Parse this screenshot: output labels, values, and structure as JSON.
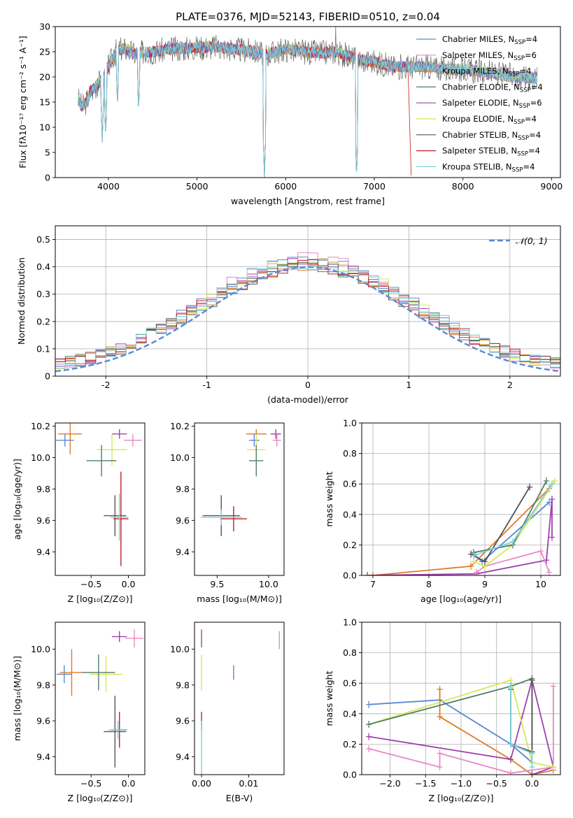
{
  "colors": {
    "Chabrier MILES": "#5b87d6",
    "Salpeter MILES": "#e78ac3",
    "Kroupa MILES": "#e07b24",
    "Chabrier ELODIE": "#4f7f6a",
    "Salpeter ELODIE": "#a040b0",
    "Kroupa ELODIE": "#d6e85a",
    "Chabrier STELIB": "#555555",
    "Salpeter STELIB": "#c41e1e",
    "Kroupa STELIB": "#79d2dc"
  },
  "chart_data": [
    {
      "id": "spectrum",
      "type": "line",
      "title": "PLATE=0376, MJD=52143, FIBERID=0510, z=0.04",
      "xlabel": "wavelength [Angstrom, rest frame]",
      "ylabel": "Flux [fλ10⁻¹⁷ erg cm⁻² s⁻¹ A⁻¹]",
      "xlim": [
        3400,
        9100
      ],
      "ylim": [
        0,
        30
      ],
      "xticks": [
        4000,
        5000,
        6000,
        7000,
        8000,
        9000
      ],
      "yticks": [
        0,
        5,
        10,
        15,
        20,
        25,
        30
      ],
      "legend_position": "top-right",
      "legend": [
        {
          "label": "Chabrier MILES, N",
          "sub": "SSP",
          "suffix": "=4",
          "series": "Chabrier MILES"
        },
        {
          "label": "Salpeter MILES, N",
          "sub": "SSP",
          "suffix": "=6",
          "series": "Salpeter MILES"
        },
        {
          "label": "Kroupa MILES, N",
          "sub": "SSP",
          "suffix": "=4",
          "series": "Kroupa MILES"
        },
        {
          "label": "Chabrier ELODIE, N",
          "sub": "SSP",
          "suffix": "=4",
          "series": "Chabrier ELODIE"
        },
        {
          "label": "Salpeter ELODIE, N",
          "sub": "SSP",
          "suffix": "=6",
          "series": "Salpeter ELODIE"
        },
        {
          "label": "Kroupa ELODIE, N",
          "sub": "SSP",
          "suffix": "=4",
          "series": "Kroupa ELODIE"
        },
        {
          "label": "Chabrier STELIB, N",
          "sub": "SSP",
          "suffix": "=4",
          "series": "Chabrier STELIB"
        },
        {
          "label": "Salpeter STELIB, N",
          "sub": "SSP",
          "suffix": "=4",
          "series": "Salpeter STELIB"
        },
        {
          "label": "Kroupa STELIB, N",
          "sub": "SSP",
          "suffix": "=4",
          "series": "Kroupa STELIB"
        }
      ],
      "envelope": {
        "x": [
          3650,
          3700,
          3750,
          3800,
          3850,
          3900,
          3950,
          4000,
          4050,
          4100,
          4200,
          4300,
          4400,
          4500,
          4700,
          5000,
          5200,
          5400,
          5600,
          5800,
          6000,
          6200,
          6400,
          6560,
          6800,
          7000,
          7200,
          7400,
          7600,
          7800,
          8000,
          8200,
          8400,
          8600,
          8800
        ],
        "y": [
          16,
          14,
          15,
          17,
          18,
          19,
          20,
          22,
          24,
          25.5,
          25.5,
          24.5,
          25,
          25,
          25.5,
          25.8,
          26,
          25.5,
          25.2,
          24.5,
          25.5,
          25,
          24.8,
          25,
          23.5,
          23,
          22,
          22,
          22,
          21.5,
          21.5,
          21,
          20.5,
          20,
          19.8
        ]
      },
      "dips": [
        {
          "x": 3930,
          "y": 7
        },
        {
          "x": 3968,
          "y": 8
        },
        {
          "x": 4102,
          "y": 14
        },
        {
          "x": 4340,
          "y": 13
        },
        {
          "x": 5760,
          "y": 0
        },
        {
          "x": 6800,
          "y": 0
        }
      ],
      "spikes": [
        {
          "x": 6565,
          "y": 30
        }
      ]
    },
    {
      "id": "residuals",
      "type": "histogram",
      "xlabel": "(data-model)/error",
      "ylabel": "Normed distribution",
      "xlim": [
        -2.5,
        2.5
      ],
      "ylim": [
        0,
        0.55
      ],
      "xticks": [
        -2,
        -1,
        0,
        1,
        2
      ],
      "yticks": [
        0.0,
        0.1,
        0.2,
        0.3,
        0.4,
        0.5
      ],
      "grid": true,
      "legend_position": "top-right",
      "reference_curve": {
        "label": "𝒩(0, 1)",
        "mean": 0,
        "sigma": 1,
        "color": "#5b87d6"
      },
      "bin_width": 0.1,
      "series": [
        {
          "name": "Chabrier MILES",
          "peak": 0.44,
          "seed": 1
        },
        {
          "name": "Salpeter MILES",
          "peak": 0.45,
          "seed": 2
        },
        {
          "name": "Kroupa MILES",
          "peak": 0.42,
          "seed": 3
        },
        {
          "name": "Chabrier ELODIE",
          "peak": 0.42,
          "seed": 4
        },
        {
          "name": "Salpeter ELODIE",
          "peak": 0.43,
          "seed": 5
        },
        {
          "name": "Kroupa ELODIE",
          "peak": 0.44,
          "seed": 6
        },
        {
          "name": "Chabrier STELIB",
          "peak": 0.42,
          "seed": 7
        },
        {
          "name": "Salpeter STELIB",
          "peak": 0.42,
          "seed": 8
        },
        {
          "name": "Kroupa STELIB",
          "peak": 0.43,
          "seed": 9
        }
      ]
    },
    {
      "id": "age-vs-Z",
      "type": "errorbar",
      "xlabel": "Z [log₁₀(Z/Z⊙)]",
      "ylabel": "age  [log₁₀(age/yr)]",
      "xlim": [
        -0.98,
        0.22
      ],
      "ylim": [
        9.25,
        10.22
      ],
      "xticks": [
        -0.5,
        0.0
      ],
      "xticklabels": [
        "−0.5",
        "0.0"
      ],
      "yticks": [
        9.4,
        9.6,
        9.8,
        10.0,
        10.2
      ],
      "yticklabels": [
        "9.4",
        "9.6",
        "9.8",
        "10.0",
        "10.2"
      ],
      "points": [
        {
          "series": "Chabrier MILES",
          "x": -0.85,
          "y": 10.11,
          "xerr": 0.12,
          "yerr": 0.04
        },
        {
          "series": "Kroupa MILES",
          "x": -0.78,
          "y": 10.15,
          "xerr": 0.16,
          "yerr": 0.13
        },
        {
          "series": "Salpeter ELODIE",
          "x": -0.12,
          "y": 10.15,
          "xerr": 0.1,
          "yerr": 0.03
        },
        {
          "series": "Salpeter MILES",
          "x": 0.06,
          "y": 10.11,
          "xerr": 0.12,
          "yerr": 0.04
        },
        {
          "series": "Kroupa ELODIE",
          "x": -0.22,
          "y": 10.05,
          "xerr": 0.2,
          "yerr": 0.1
        },
        {
          "series": "Chabrier ELODIE",
          "x": -0.36,
          "y": 9.98,
          "xerr": 0.2,
          "yerr": 0.1
        },
        {
          "series": "Chabrier STELIB",
          "x": -0.18,
          "y": 9.63,
          "xerr": 0.15,
          "yerr": 0.13
        },
        {
          "series": "Salpeter STELIB",
          "x": -0.1,
          "y": 9.61,
          "xerr": 0.1,
          "yerr": 0.3
        },
        {
          "series": "Kroupa STELIB",
          "x": -0.12,
          "y": 9.62,
          "xerr": 0.12,
          "yerr": 0.15
        }
      ]
    },
    {
      "id": "age-vs-mass",
      "type": "errorbar",
      "xlabel": "mass [log₁₀(M/M⊙)]",
      "ylabel": "",
      "xlim": [
        9.28,
        10.15
      ],
      "ylim": [
        9.25,
        10.22
      ],
      "xticks": [
        9.5,
        10.0
      ],
      "xticklabels": [
        "9.5",
        "10.0"
      ],
      "yticks": [
        9.4,
        9.6,
        9.8,
        10.0,
        10.2
      ],
      "yticklabels": [
        "9.4",
        "9.6",
        "9.8",
        "10.0",
        "10.2"
      ],
      "points": [
        {
          "series": "Kroupa MILES",
          "x": 9.88,
          "y": 10.15,
          "xerr": 0.1,
          "yerr": 0.03
        },
        {
          "series": "Salpeter ELODIE",
          "x": 10.07,
          "y": 10.15,
          "xerr": 0.05,
          "yerr": 0.03
        },
        {
          "series": "Salpeter MILES",
          "x": 10.08,
          "y": 10.11,
          "xerr": 0.04,
          "yerr": 0.04
        },
        {
          "series": "Chabrier MILES",
          "x": 9.86,
          "y": 10.11,
          "xerr": 0.05,
          "yerr": 0.04
        },
        {
          "series": "Kroupa ELODIE",
          "x": 9.88,
          "y": 10.05,
          "xerr": 0.09,
          "yerr": 0.1
        },
        {
          "series": "Chabrier ELODIE",
          "x": 9.88,
          "y": 9.98,
          "xerr": 0.07,
          "yerr": 0.1
        },
        {
          "series": "Chabrier STELIB",
          "x": 9.54,
          "y": 9.63,
          "xerr": 0.18,
          "yerr": 0.13
        },
        {
          "series": "Salpeter STELIB",
          "x": 9.66,
          "y": 9.61,
          "xerr": 0.13,
          "yerr": 0.08
        },
        {
          "series": "Kroupa STELIB",
          "x": 9.54,
          "y": 9.62,
          "xerr": 0.2,
          "yerr": 0.05
        }
      ]
    },
    {
      "id": "weight-vs-age",
      "type": "line",
      "xlabel": "age  [log₁₀(age/yr)]",
      "ylabel": "mass weight",
      "xlim": [
        6.8,
        10.35
      ],
      "ylim": [
        0,
        1.0
      ],
      "xticks": [
        7,
        8,
        9,
        10
      ],
      "xticklabels": [
        "7",
        "8",
        "9",
        "10"
      ],
      "yticks": [
        0.0,
        0.2,
        0.4,
        0.6,
        0.8,
        1.0
      ],
      "yticklabels": [
        "0.0",
        "0.2",
        "0.4",
        "0.6",
        "0.8",
        "1.0"
      ],
      "grid": true,
      "series": [
        {
          "name": "Chabrier MILES",
          "x": [
            8.8,
            8.95,
            10.15
          ],
          "y": [
            0.14,
            0.09,
            0.48
          ]
        },
        {
          "name": "Kroupa MILES",
          "x": [
            7.0,
            8.75,
            10.15
          ],
          "y": [
            0.0,
            0.06,
            0.57
          ]
        },
        {
          "name": "Salpeter ELODIE",
          "x": [
            6.9,
            8.85,
            10.1,
            10.2,
            10.2
          ],
          "y": [
            0.0,
            0.01,
            0.1,
            0.5,
            0.25
          ]
        },
        {
          "name": "Salpeter MILES",
          "x": [
            8.85,
            9.0,
            10.0,
            10.15
          ],
          "y": [
            0.02,
            0.06,
            0.16,
            0.02
          ]
        },
        {
          "name": "Kroupa ELODIE",
          "x": [
            8.8,
            9.0,
            9.5,
            10.25
          ],
          "y": [
            0.09,
            0.06,
            0.2,
            0.62
          ]
        },
        {
          "name": "Chabrier ELODIE",
          "x": [
            8.8,
            9.5,
            10.1
          ],
          "y": [
            0.15,
            0.2,
            0.62
          ]
        },
        {
          "name": "Chabrier STELIB",
          "x": [
            8.75,
            9.0,
            9.8
          ],
          "y": [
            0.14,
            0.09,
            0.58
          ]
        },
        {
          "name": "Kroupa STELIB",
          "x": [
            8.8,
            9.5,
            10.2
          ],
          "y": [
            0.13,
            0.22,
            0.6
          ]
        }
      ]
    },
    {
      "id": "mass-vs-Z",
      "type": "errorbar",
      "xlabel": "Z [log₁₀(Z/Z⊙)]",
      "ylabel": "mass [log₁₀(M/M⊙)]",
      "xlim": [
        -0.98,
        0.22
      ],
      "ylim": [
        9.3,
        10.15
      ],
      "xticks": [
        -0.5,
        0.0
      ],
      "xticklabels": [
        "−0.5",
        "0.0"
      ],
      "yticks": [
        9.4,
        9.6,
        9.8,
        10.0
      ],
      "yticklabels": [
        "9.4",
        "9.6",
        "9.8",
        "10.0"
      ],
      "points": [
        {
          "series": "Chabrier MILES",
          "x": -0.86,
          "y": 9.86,
          "xerr": 0.1,
          "yerr": 0.05
        },
        {
          "series": "Kroupa MILES",
          "x": -0.76,
          "y": 9.87,
          "xerr": 0.16,
          "yerr": 0.13
        },
        {
          "series": "Kroupa ELODIE",
          "x": -0.3,
          "y": 9.86,
          "xerr": 0.22,
          "yerr": 0.1
        },
        {
          "series": "Chabrier ELODIE",
          "x": -0.4,
          "y": 9.87,
          "xerr": 0.22,
          "yerr": 0.1
        },
        {
          "series": "Salpeter ELODIE",
          "x": -0.12,
          "y": 10.07,
          "xerr": 0.1,
          "yerr": 0.03
        },
        {
          "series": "Salpeter MILES",
          "x": 0.08,
          "y": 10.06,
          "xerr": 0.12,
          "yerr": 0.05
        },
        {
          "series": "Salpeter STELIB",
          "x": -0.12,
          "y": 9.55,
          "xerr": 0.1,
          "yerr": 0.1
        },
        {
          "series": "Chabrier STELIB",
          "x": -0.18,
          "y": 9.54,
          "xerr": 0.15,
          "yerr": 0.2
        },
        {
          "series": "Kroupa STELIB",
          "x": -0.14,
          "y": 9.55,
          "xerr": 0.12,
          "yerr": 0.05
        }
      ]
    },
    {
      "id": "mass-vs-ebv",
      "type": "errorbar",
      "xlabel": "E(B-V)",
      "ylabel": "",
      "xlim": [
        -0.0015,
        0.0175
      ],
      "ylim": [
        9.3,
        10.15
      ],
      "xticks": [
        0.0,
        0.01
      ],
      "xticklabels": [
        "0.00",
        "0.01"
      ],
      "yticks": [
        9.4,
        9.6,
        9.8,
        10.0
      ],
      "yticklabels": [
        "9.4",
        "9.6",
        "9.8",
        "10.0"
      ],
      "points": [
        {
          "series": "Chabrier MILES",
          "x": 0.0068,
          "y": 9.87,
          "xerr": 0,
          "yerr": 0.04
        },
        {
          "series": "Salpeter MILES",
          "x": 0.0165,
          "y": 10.05,
          "xerr": 0,
          "yerr": 0.05
        },
        {
          "series": "Salpeter ELODIE",
          "x": 0.0,
          "y": 10.06,
          "xerr": 0,
          "yerr": 0.05
        },
        {
          "series": "Kroupa ELODIE",
          "x": 0.0,
          "y": 9.87,
          "xerr": 0,
          "yerr": 0.1
        },
        {
          "series": "Salpeter STELIB",
          "x": 0.0,
          "y": 9.6,
          "xerr": 0,
          "yerr": 0.05
        },
        {
          "series": "Kroupa STELIB",
          "x": 0.0,
          "y": 9.45,
          "xerr": 0,
          "yerr": 0.15
        }
      ]
    },
    {
      "id": "weight-vs-Z",
      "type": "line",
      "xlabel": "Z [log₁₀(Z/Z⊙)]",
      "ylabel": "mass weight",
      "xlim": [
        -2.4,
        0.4
      ],
      "ylim": [
        0,
        1.0
      ],
      "xticks": [
        -2.0,
        -1.5,
        -1.0,
        -0.5,
        0.0
      ],
      "xticklabels": [
        "−2.0",
        "−1.5",
        "−1.0",
        "−0.5",
        "0.0"
      ],
      "yticks": [
        0.0,
        0.2,
        0.4,
        0.6,
        0.8,
        1.0
      ],
      "yticklabels": [
        "0.0",
        "0.2",
        "0.4",
        "0.6",
        "0.8",
        "1.0"
      ],
      "grid": true,
      "series": [
        {
          "name": "Chabrier MILES",
          "x": [
            -2.3,
            -1.3,
            -0.3,
            0.0
          ],
          "y": [
            0.46,
            0.49,
            0.2,
            0.08
          ]
        },
        {
          "name": "Kroupa MILES",
          "x": [
            -1.3,
            -1.3,
            -0.3,
            0.0,
            0.3
          ],
          "y": [
            0.56,
            0.38,
            0.1,
            0.0,
            0.03
          ]
        },
        {
          "name": "Salpeter ELODIE",
          "x": [
            -2.3,
            -0.3,
            0.0,
            0.3,
            0.0
          ],
          "y": [
            0.25,
            0.1,
            0.62,
            0.05,
            0.0
          ]
        },
        {
          "name": "Salpeter MILES",
          "x": [
            -2.3,
            -1.3,
            -1.3,
            -0.3,
            0.3,
            0.3
          ],
          "y": [
            0.17,
            0.05,
            0.14,
            0.01,
            0.05,
            0.58
          ]
        },
        {
          "name": "Kroupa ELODIE",
          "x": [
            -2.3,
            -0.3,
            0.0,
            0.3
          ],
          "y": [
            0.33,
            0.62,
            0.08,
            0.05
          ]
        },
        {
          "name": "Chabrier ELODIE",
          "x": [
            -2.3,
            -0.3,
            0.0,
            0.0
          ],
          "y": [
            0.33,
            0.58,
            0.63,
            0.14
          ]
        },
        {
          "name": "Chabrier STELIB",
          "x": [
            -0.3,
            -0.3,
            0.0,
            0.0
          ],
          "y": [
            0.56,
            0.2,
            0.15,
            0.62
          ]
        },
        {
          "name": "Kroupa STELIB",
          "x": [
            -0.3,
            -0.3,
            0.0,
            0.0
          ],
          "y": [
            0.58,
            0.2,
            0.14,
            0.05
          ]
        }
      ]
    }
  ]
}
